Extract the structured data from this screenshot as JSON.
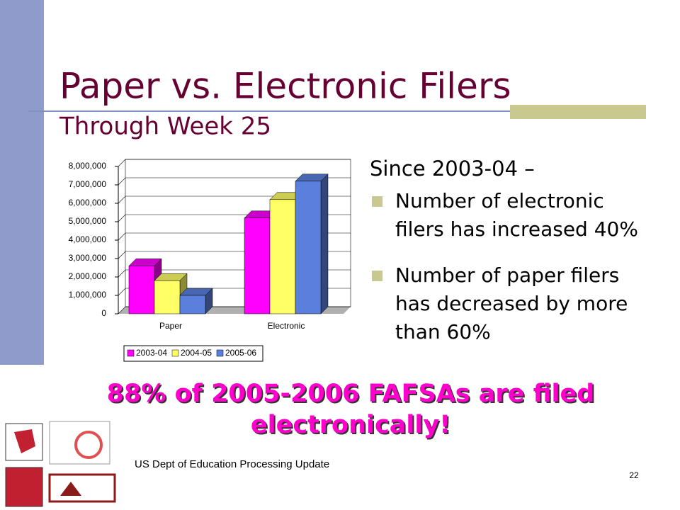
{
  "header": {
    "title": "Paper vs. Electronic Filers",
    "subtitle": "Through Week 25"
  },
  "chart_data": {
    "type": "bar3d",
    "categories": [
      "Paper",
      "Electronic"
    ],
    "series": [
      {
        "name": "2003-04",
        "color": "#ff00ff",
        "values": [
          2600000,
          5200000
        ]
      },
      {
        "name": "2004-05",
        "color": "#ffff66",
        "values": [
          1800000,
          6200000
        ]
      },
      {
        "name": "2005-06",
        "color": "#5b7fdc",
        "values": [
          1000000,
          7200000
        ]
      }
    ],
    "ylim": [
      0,
      8000000
    ],
    "yticks": [
      0,
      {
        "value": 1000000,
        "label": "1,000,000"
      },
      {
        "value": 2000000,
        "label": "2,000,000"
      },
      {
        "value": 3000000,
        "label": "3,000,000"
      },
      {
        "value": 4000000,
        "label": "4,000,000"
      },
      {
        "value": 5000000,
        "label": "5,000,000"
      },
      {
        "value": 6000000,
        "label": "6,000,000"
      },
      {
        "value": 7000000,
        "label": "7,000,000"
      },
      {
        "value": 8000000,
        "label": "8,000,000"
      }
    ],
    "grid": true,
    "legend": "bottom"
  },
  "notes": {
    "lead": "Since 2003-04 –",
    "bullets": [
      [
        "Number of electronic",
        "filers has increased 40%"
      ],
      [
        "Number of paper filers",
        "has decreased by more",
        "than 60%"
      ]
    ]
  },
  "highlight": [
    "88% of 2005-2006 FAFSAs are filed",
    "electronically!"
  ],
  "footer": {
    "text": "US Dept of Education Processing Update",
    "page": "22"
  }
}
